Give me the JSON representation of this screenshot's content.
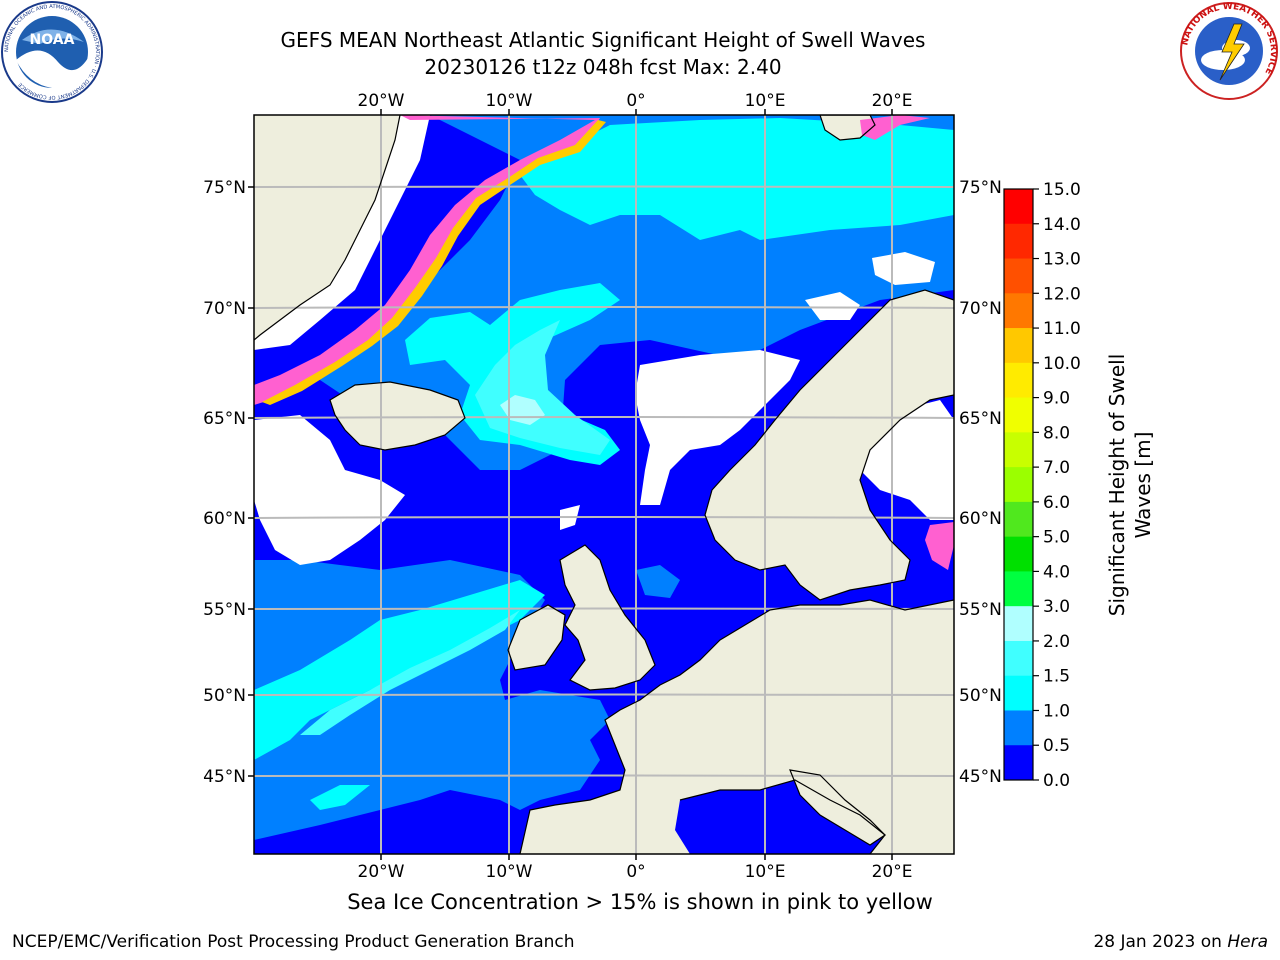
{
  "header": {
    "title_line1": "GEFS MEAN Northeast Atlantic Significant Height of Swell Waves",
    "title_line2": "20230126 t12z 048h fcst   Max: 2.40"
  },
  "logos": {
    "left": {
      "icon": "noaa-logo",
      "text": "NOAA",
      "ring_text": "NATIONAL OCEANIC AND ATMOSPHERIC ADMINISTRATION · U.S. DEPARTMENT OF COMMERCE"
    },
    "right": {
      "icon": "nws-logo",
      "ring_text": "NATIONAL WEATHER SERVICE"
    }
  },
  "map": {
    "lon_labels": [
      "20°W",
      "10°W",
      "0°",
      "10°E",
      "20°E"
    ],
    "lat_labels": [
      "75°N",
      "70°N",
      "65°N",
      "60°N",
      "55°N",
      "50°N",
      "45°N"
    ],
    "colors": {
      "land": "#eeeedd",
      "no_swell": "#ffffff",
      "swell_0_0.5": "#0000ff",
      "swell_0.5_1.0": "#0080ff",
      "swell_1.0_1.5": "#00ffff",
      "swell_1.5_2.0": "#40ffff",
      "swell_2.0_3.0": "#b0ffff",
      "ice": "#ff60d0",
      "ice_edge": "#ffcc00",
      "grid": "#bbbbbb"
    }
  },
  "colorbar": {
    "label": "Significant Height of Swell Waves [m]",
    "ticks": [
      "15.0",
      "14.0",
      "13.0",
      "12.0",
      "11.0",
      "10.0",
      "9.0",
      "8.0",
      "7.0",
      "6.0",
      "5.0",
      "4.0",
      "3.0",
      "2.0",
      "1.5",
      "1.0",
      "0.5",
      "0.0"
    ],
    "colors_top_to_bottom": [
      "#ff0000",
      "#ff2800",
      "#ff5000",
      "#ff7800",
      "#ff9f00",
      "#ffc800",
      "#ffeb00",
      "#f0ff00",
      "#c8ff00",
      "#9bff00",
      "#50e81e",
      "#00e000",
      "#00ff40",
      "#50ff80",
      "#b0ffff",
      "#40ffff",
      "#00ffff",
      "#0080ff",
      "#0000ff"
    ]
  },
  "caption": "Sea Ice Concentration > 15% is shown in pink to yellow",
  "footer": {
    "left": "NCEP/EMC/Verification Post Processing Product Generation Branch",
    "right_prefix": "28 Jan 2023 on ",
    "right_host": "Hera"
  }
}
